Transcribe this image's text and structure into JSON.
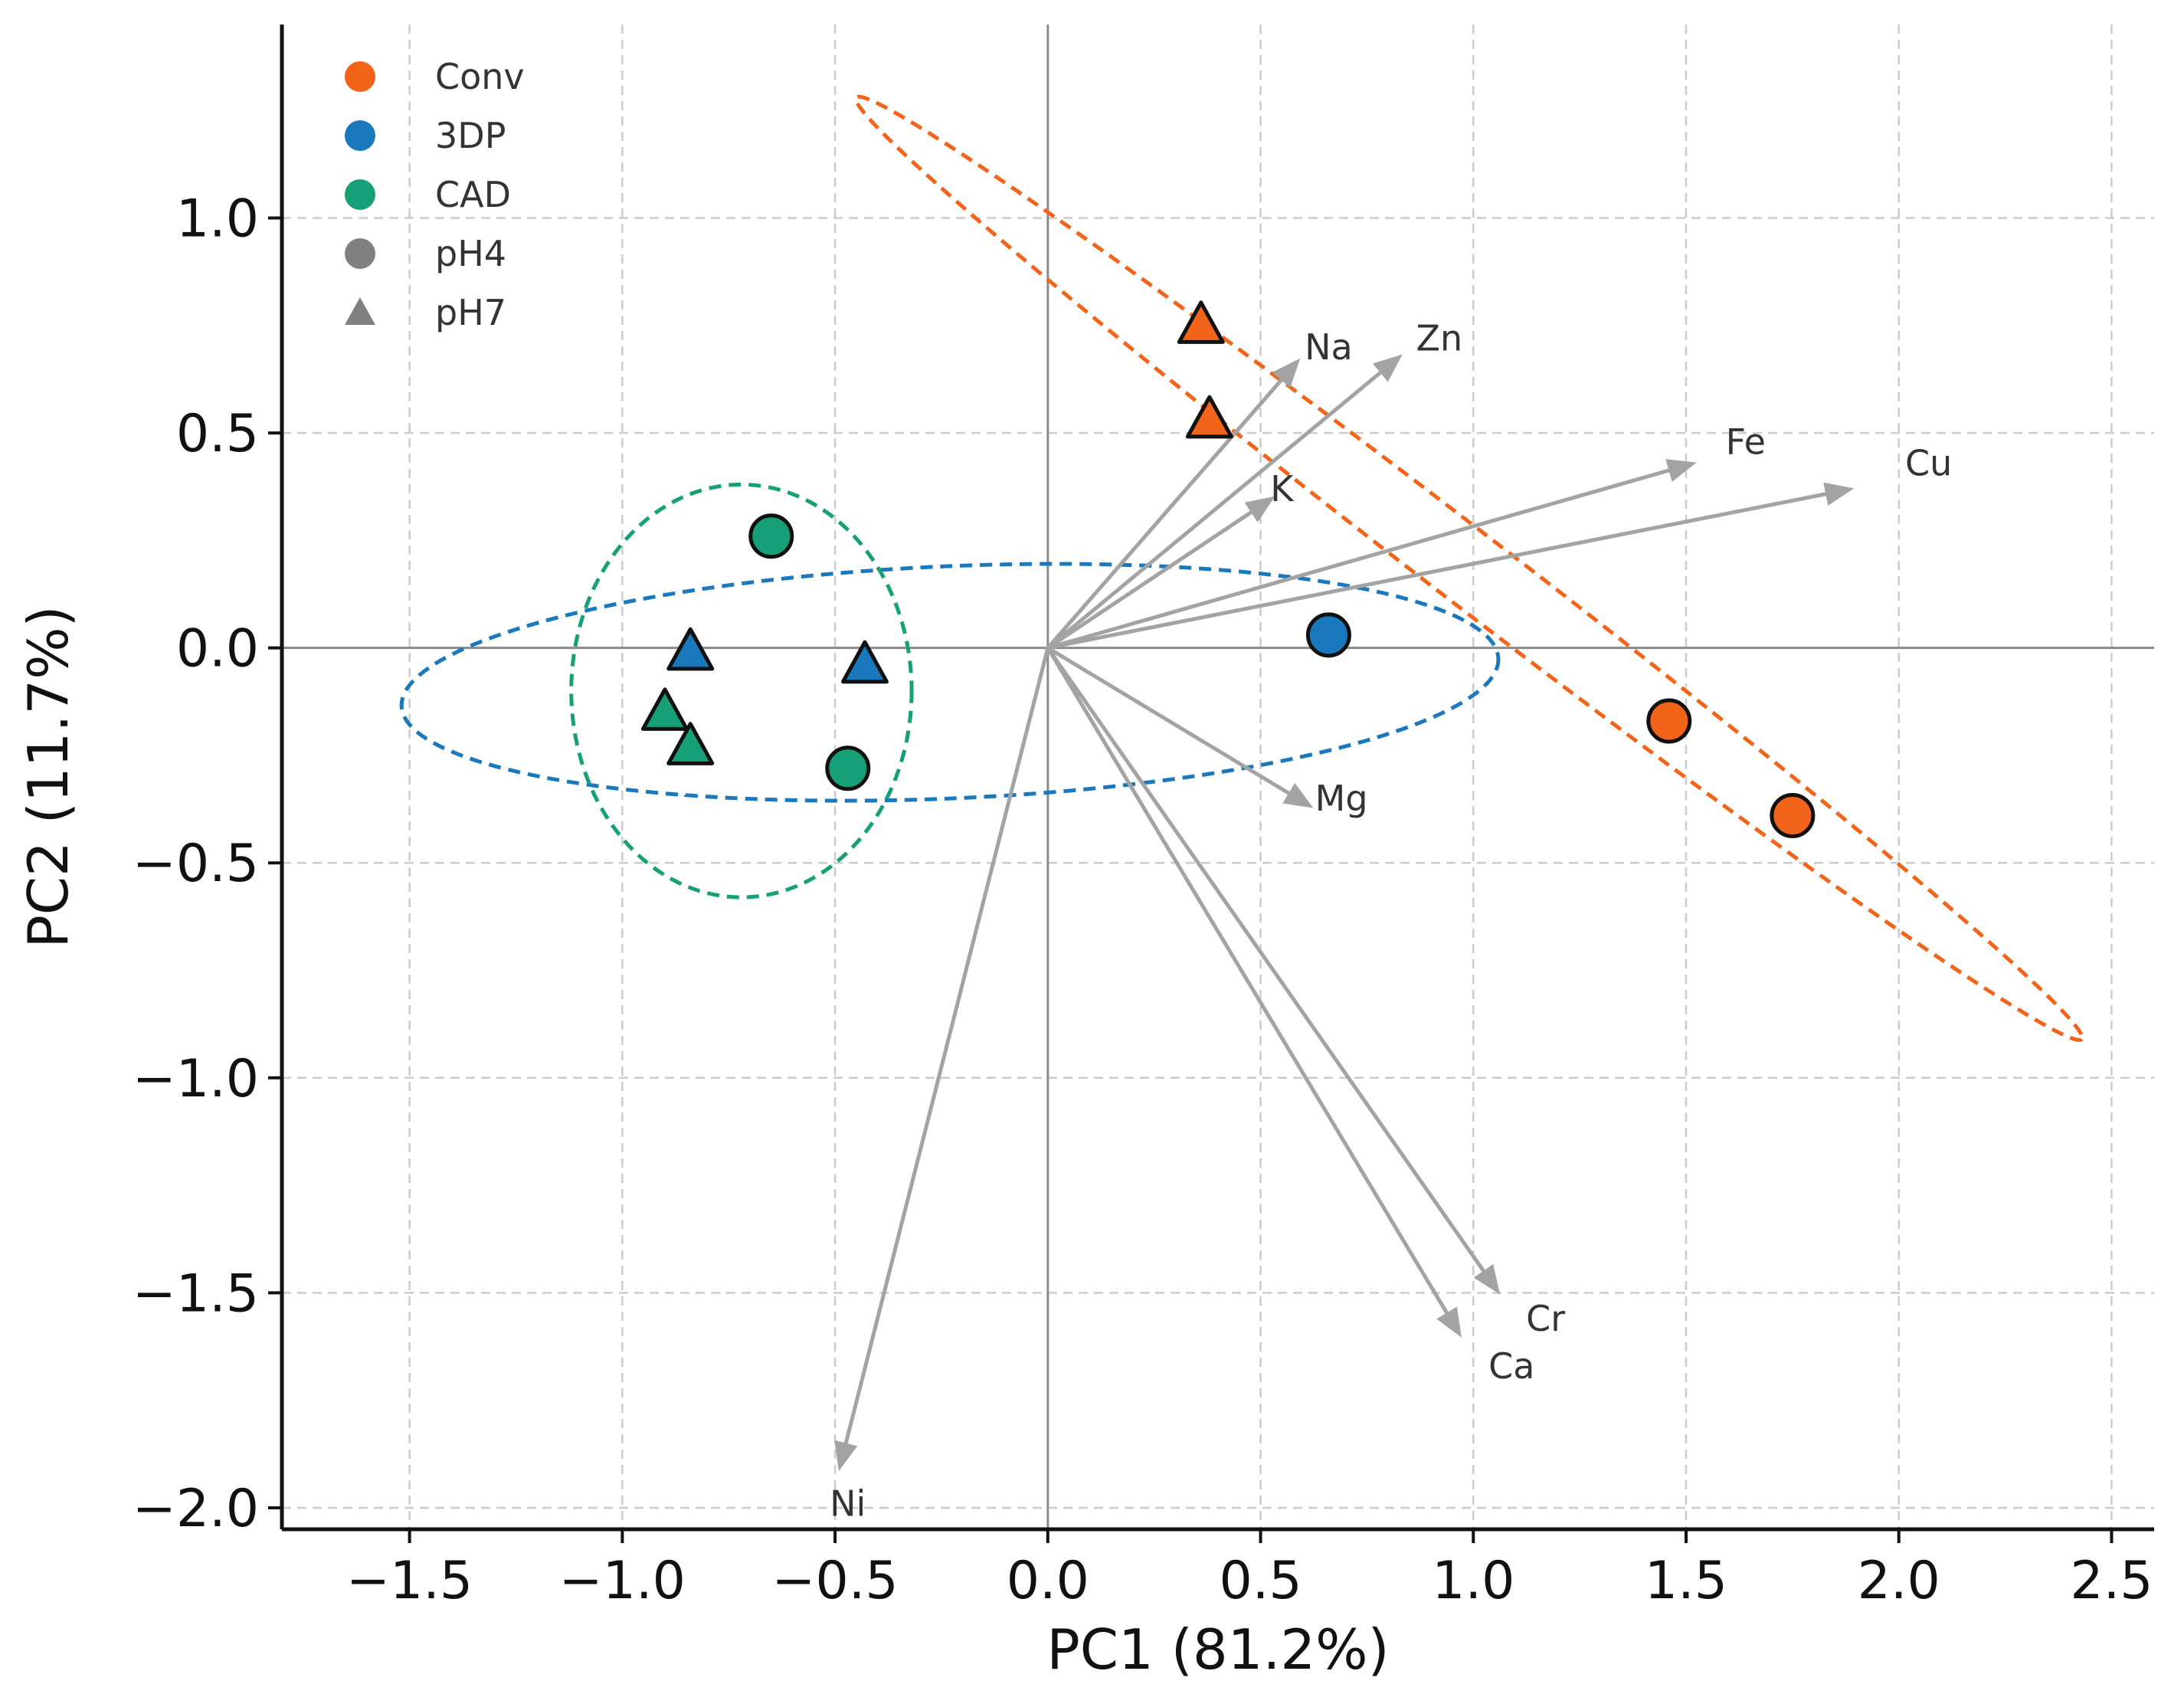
{
  "chart_data": {
    "type": "scatter",
    "subtype": "pca-biplot",
    "xlabel": "PC1 (81.2%)",
    "ylabel": "PC2 (11.7%)",
    "xlim": [
      -1.8,
      2.6
    ],
    "ylim": [
      -2.05,
      1.45
    ],
    "x_ticks": [
      -1.5,
      -1.0,
      -0.5,
      0.0,
      0.5,
      1.0,
      1.5,
      2.0,
      2.5
    ],
    "x_tick_labels": [
      "−1.5",
      "−1.0",
      "−0.5",
      "0.0",
      "0.5",
      "1.0",
      "1.5",
      "2.0",
      "2.5"
    ],
    "y_ticks": [
      1.0,
      0.5,
      0.0,
      -0.5,
      -1.0,
      -1.5,
      -2.0
    ],
    "y_tick_labels": [
      "1.0",
      "0.5",
      "0.0",
      "−0.5",
      "−1.0",
      "−1.5",
      "−2.0"
    ],
    "grid": true,
    "colors": {
      "Conv": "#f26419",
      "3DP": "#1a78bd",
      "CAD": "#17a077",
      "legend_gray": "#808080",
      "arrow": "#a3a3a3",
      "zero_line": "#8a8a8a",
      "grid": "#cccccc"
    },
    "legend": {
      "position": "top-left",
      "entries": [
        {
          "label": "Conv",
          "marker": "circle",
          "color": "#f26419"
        },
        {
          "label": "3DP",
          "marker": "circle",
          "color": "#1a78bd"
        },
        {
          "label": "CAD",
          "marker": "circle",
          "color": "#17a077"
        },
        {
          "label": "pH4",
          "marker": "circle",
          "color": "#808080"
        },
        {
          "label": "pH7",
          "marker": "triangle",
          "color": "#808080"
        }
      ]
    },
    "points": [
      {
        "group": "Conv",
        "ph": "pH7",
        "x": 0.36,
        "y": 0.75
      },
      {
        "group": "Conv",
        "ph": "pH7",
        "x": 0.38,
        "y": 0.53
      },
      {
        "group": "Conv",
        "ph": "pH4",
        "x": 1.46,
        "y": -0.17
      },
      {
        "group": "Conv",
        "ph": "pH4",
        "x": 1.75,
        "y": -0.39
      },
      {
        "group": "3DP",
        "ph": "pH4",
        "x": 0.66,
        "y": 0.03
      },
      {
        "group": "3DP",
        "ph": "pH7",
        "x": -0.84,
        "y": -0.01
      },
      {
        "group": "3DP",
        "ph": "pH7",
        "x": -0.43,
        "y": -0.04
      },
      {
        "group": "CAD",
        "ph": "pH4",
        "x": -0.65,
        "y": 0.26
      },
      {
        "group": "CAD",
        "ph": "pH4",
        "x": -0.47,
        "y": -0.28
      },
      {
        "group": "CAD",
        "ph": "pH7",
        "x": -0.9,
        "y": -0.15
      },
      {
        "group": "CAD",
        "ph": "pH7",
        "x": -0.84,
        "y": -0.23
      }
    ],
    "ellipses": [
      {
        "group": "Conv",
        "cx": 0.92,
        "cy": 0.18,
        "points": [
          [
            -0.45,
            1.28
          ],
          [
            2.43,
            -0.91
          ],
          [
            0.9,
            0.65
          ],
          [
            0.95,
            -0.3
          ]
        ]
      },
      {
        "group": "3DP",
        "cx": -0.23,
        "cy": -0.08,
        "rx": 1.29,
        "ry": 0.27,
        "angle_deg": 2.5
      },
      {
        "group": "CAD",
        "cx": -0.72,
        "cy": -0.1,
        "rx": 0.4,
        "ry": 0.48,
        "angle_deg": 0
      }
    ],
    "loadings": [
      {
        "label": "Na",
        "x": 0.59,
        "y": 0.67,
        "label_x": 0.66,
        "label_y": 0.7
      },
      {
        "label": "Zn",
        "x": 0.83,
        "y": 0.68,
        "label_x": 0.92,
        "label_y": 0.72
      },
      {
        "label": "K",
        "x": 0.53,
        "y": 0.35,
        "label_x": 0.55,
        "label_y": 0.37
      },
      {
        "label": "Fe",
        "x": 1.52,
        "y": 0.43,
        "label_x": 1.64,
        "label_y": 0.48
      },
      {
        "label": "Cu",
        "x": 1.89,
        "y": 0.37,
        "label_x": 2.07,
        "label_y": 0.43
      },
      {
        "label": "Mg",
        "x": 0.62,
        "y": -0.37,
        "label_x": 0.69,
        "label_y": -0.35
      },
      {
        "label": "Cr",
        "x": 1.06,
        "y": -1.5,
        "label_x": 1.17,
        "label_y": -1.56
      },
      {
        "label": "Ca",
        "x": 0.97,
        "y": -1.6,
        "label_x": 1.09,
        "label_y": -1.67
      },
      {
        "label": "Ni",
        "x": -0.49,
        "y": -1.91,
        "label_x": -0.47,
        "label_y": -1.99
      }
    ]
  }
}
